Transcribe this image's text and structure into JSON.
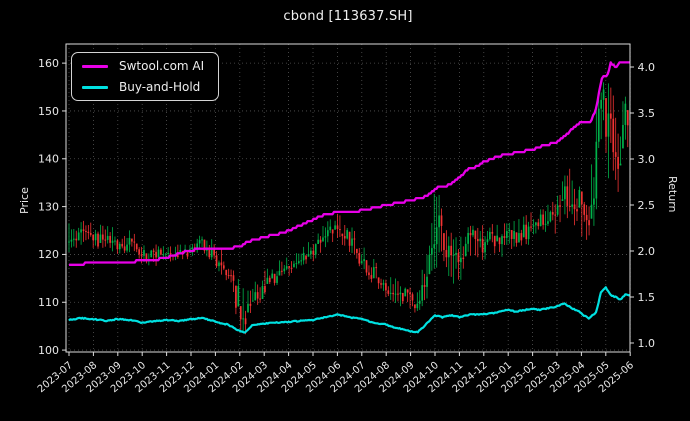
{
  "chart_data": {
    "type": "candlestick+line",
    "title": "cbond [113637.SH]",
    "xlabel": "",
    "grid": true,
    "legend_position": "upper-left",
    "x_tick_labels": [
      "2023-07",
      "2023-08",
      "2023-09",
      "2023-10",
      "2023-11",
      "2023-12",
      "2024-01",
      "2024-02",
      "2024-03",
      "2024-04",
      "2024-05",
      "2024-06",
      "2024-07",
      "2024-08",
      "2024-09",
      "2024-10",
      "2024-11",
      "2024-12",
      "2025-01",
      "2025-02",
      "2025-03",
      "2025-04",
      "2025-05",
      "2025-06"
    ],
    "left_axis": {
      "label": "Price",
      "ticks": [
        "100",
        "110",
        "120",
        "130",
        "140",
        "150",
        "160"
      ],
      "range": [
        99.6,
        164.0
      ]
    },
    "right_axis": {
      "label": "Return",
      "ticks": [
        "1.0",
        "1.5",
        "2.0",
        "2.5",
        "3.0",
        "3.5",
        "4.0"
      ],
      "range": [
        0.902,
        4.25
      ]
    },
    "candles_envelope_monthly": [
      [
        0.0,
        126.5,
        120.5,
        123.5
      ],
      [
        0.5,
        127.2,
        122,
        125
      ],
      [
        1.0,
        126.5,
        121,
        123.5
      ],
      [
        1.5,
        126,
        121.5,
        124
      ],
      [
        2.0,
        125.5,
        120,
        122
      ],
      [
        2.5,
        125,
        120.5,
        123
      ],
      [
        3.0,
        123,
        118,
        120
      ],
      [
        3.5,
        122,
        117.5,
        119.5
      ],
      [
        4.0,
        122.5,
        118.3,
        120
      ],
      [
        4.5,
        122,
        119,
        120.5
      ],
      [
        5.0,
        122.5,
        119,
        120.5
      ],
      [
        5.5,
        124.5,
        120.5,
        122.5
      ],
      [
        6.0,
        123.5,
        117.5,
        119.5
      ],
      [
        6.5,
        119,
        114,
        116.5
      ],
      [
        7.0,
        115,
        104.5,
        109
      ],
      [
        7.2,
        112,
        103,
        106.5
      ],
      [
        7.5,
        113.5,
        105.5,
        111
      ],
      [
        8.0,
        116.5,
        111.5,
        114
      ],
      [
        8.5,
        118.5,
        113.5,
        116
      ],
      [
        9.0,
        119.5,
        115.5,
        117.5
      ],
      [
        9.5,
        121,
        116.5,
        119
      ],
      [
        10.0,
        123.5,
        118.5,
        121
      ],
      [
        10.5,
        126.5,
        121.5,
        124
      ],
      [
        11.0,
        128.5,
        123,
        126
      ],
      [
        11.3,
        127.5,
        121.5,
        124
      ],
      [
        11.7,
        125,
        119.5,
        121.5
      ],
      [
        12.0,
        122,
        116.5,
        119
      ],
      [
        12.5,
        119,
        113.5,
        116
      ],
      [
        13.0,
        116.5,
        111,
        113.5
      ],
      [
        13.5,
        114.5,
        109.5,
        112
      ],
      [
        14.0,
        113,
        107.5,
        110
      ],
      [
        14.3,
        112,
        107.8,
        109.5
      ],
      [
        14.7,
        123,
        111,
        117
      ],
      [
        15.0,
        140,
        115,
        122
      ],
      [
        15.2,
        131,
        118,
        124
      ],
      [
        15.5,
        126,
        116,
        120
      ],
      [
        16.0,
        123,
        112,
        117
      ],
      [
        16.3,
        126.5,
        117,
        122
      ],
      [
        16.6,
        127,
        120,
        124
      ],
      [
        17.0,
        126,
        118.5,
        122
      ],
      [
        17.5,
        126.5,
        120,
        123.5
      ],
      [
        18.0,
        126.5,
        119,
        123
      ],
      [
        18.5,
        127.5,
        121,
        124.5
      ],
      [
        19.0,
        129,
        122.5,
        126
      ],
      [
        19.5,
        130,
        123.5,
        127
      ],
      [
        20.0,
        131.5,
        124.5,
        128.5
      ],
      [
        20.3,
        140.5,
        128,
        135
      ],
      [
        20.6,
        137,
        127,
        132
      ],
      [
        21.0,
        135,
        124,
        130
      ],
      [
        21.3,
        132,
        120.5,
        126
      ],
      [
        21.6,
        150,
        122,
        140
      ],
      [
        21.9,
        157.5,
        138,
        150
      ],
      [
        22.2,
        155,
        135,
        145
      ],
      [
        22.5,
        150,
        133,
        142
      ],
      [
        22.8,
        153,
        138,
        147
      ],
      [
        23.0,
        152.5,
        140,
        150.5
      ]
    ],
    "series": [
      {
        "name": "Swtool.com AI",
        "axis": "right",
        "color": "#e800e8",
        "points": [
          [
            0,
            1.85
          ],
          [
            0.5,
            1.86
          ],
          [
            1,
            1.87
          ],
          [
            1.5,
            1.875
          ],
          [
            2,
            1.88
          ],
          [
            2.5,
            1.885
          ],
          [
            3,
            1.89
          ],
          [
            3.5,
            1.9
          ],
          [
            4,
            1.93
          ],
          [
            4.5,
            1.97
          ],
          [
            5,
            2.01
          ],
          [
            5.5,
            2.02
          ],
          [
            6,
            2.03
          ],
          [
            6.5,
            2.035
          ],
          [
            7,
            2.04
          ],
          [
            7.3,
            2.1
          ],
          [
            7.6,
            2.12
          ],
          [
            8,
            2.15
          ],
          [
            8.5,
            2.18
          ],
          [
            9,
            2.22
          ],
          [
            9.5,
            2.28
          ],
          [
            10,
            2.34
          ],
          [
            10.5,
            2.4
          ],
          [
            11,
            2.42
          ],
          [
            11.5,
            2.42
          ],
          [
            12,
            2.44
          ],
          [
            12.5,
            2.47
          ],
          [
            13,
            2.5
          ],
          [
            13.5,
            2.52
          ],
          [
            14,
            2.55
          ],
          [
            14.5,
            2.58
          ],
          [
            14.8,
            2.62
          ],
          [
            15,
            2.68
          ],
          [
            15.3,
            2.7
          ],
          [
            15.6,
            2.72
          ],
          [
            16,
            2.8
          ],
          [
            16.3,
            2.88
          ],
          [
            16.7,
            2.92
          ],
          [
            17,
            2.97
          ],
          [
            17.3,
            3.0
          ],
          [
            17.6,
            3.03
          ],
          [
            18,
            3.05
          ],
          [
            18.5,
            3.08
          ],
          [
            19,
            3.1
          ],
          [
            19.5,
            3.15
          ],
          [
            20,
            3.18
          ],
          [
            20.3,
            3.25
          ],
          [
            20.6,
            3.32
          ],
          [
            21,
            3.4
          ],
          [
            21.4,
            3.41
          ],
          [
            21.6,
            3.55
          ],
          [
            21.75,
            3.76
          ],
          [
            21.85,
            3.89
          ],
          [
            22.05,
            3.9
          ],
          [
            22.2,
            4.04
          ],
          [
            22.4,
            4.0
          ],
          [
            22.6,
            4.05
          ],
          [
            22.8,
            4.06
          ],
          [
            23,
            4.06
          ]
        ]
      },
      {
        "name": "Buy-and-Hold",
        "axis": "right",
        "color": "#00e1e1",
        "points": [
          [
            0,
            1.25
          ],
          [
            0.5,
            1.27
          ],
          [
            1,
            1.26
          ],
          [
            1.5,
            1.24
          ],
          [
            2,
            1.26
          ],
          [
            2.5,
            1.25
          ],
          [
            3,
            1.22
          ],
          [
            3.5,
            1.24
          ],
          [
            4,
            1.25
          ],
          [
            4.5,
            1.24
          ],
          [
            5,
            1.26
          ],
          [
            5.5,
            1.27
          ],
          [
            6,
            1.23
          ],
          [
            6.5,
            1.2
          ],
          [
            7,
            1.13
          ],
          [
            7.2,
            1.11
          ],
          [
            7.5,
            1.19
          ],
          [
            8,
            1.21
          ],
          [
            8.5,
            1.22
          ],
          [
            9,
            1.23
          ],
          [
            9.5,
            1.24
          ],
          [
            10,
            1.25
          ],
          [
            10.5,
            1.28
          ],
          [
            11,
            1.31
          ],
          [
            11.5,
            1.28
          ],
          [
            12,
            1.26
          ],
          [
            12.5,
            1.22
          ],
          [
            13,
            1.2
          ],
          [
            13.3,
            1.17
          ],
          [
            13.7,
            1.15
          ],
          [
            14,
            1.13
          ],
          [
            14.3,
            1.12
          ],
          [
            14.7,
            1.22
          ],
          [
            15,
            1.3
          ],
          [
            15.3,
            1.28
          ],
          [
            15.7,
            1.3
          ],
          [
            16,
            1.28
          ],
          [
            16.5,
            1.31
          ],
          [
            17,
            1.31
          ],
          [
            17.5,
            1.33
          ],
          [
            18,
            1.36
          ],
          [
            18.3,
            1.34
          ],
          [
            18.7,
            1.36
          ],
          [
            19,
            1.37
          ],
          [
            19.3,
            1.36
          ],
          [
            19.7,
            1.38
          ],
          [
            20,
            1.4
          ],
          [
            20.3,
            1.43
          ],
          [
            20.6,
            1.38
          ],
          [
            20.9,
            1.34
          ],
          [
            21.1,
            1.3
          ],
          [
            21.3,
            1.27
          ],
          [
            21.6,
            1.33
          ],
          [
            21.8,
            1.55
          ],
          [
            22.0,
            1.6
          ],
          [
            22.2,
            1.52
          ],
          [
            22.4,
            1.5
          ],
          [
            22.6,
            1.47
          ],
          [
            22.8,
            1.53
          ],
          [
            23,
            1.52
          ]
        ]
      }
    ]
  },
  "colors": {
    "background": "#000000",
    "text": "#e8e8e8",
    "grid": "#9a9a9a",
    "axis_border": "#dcdcdc",
    "candle_up": "#00b24a",
    "candle_down": "#f23333"
  }
}
